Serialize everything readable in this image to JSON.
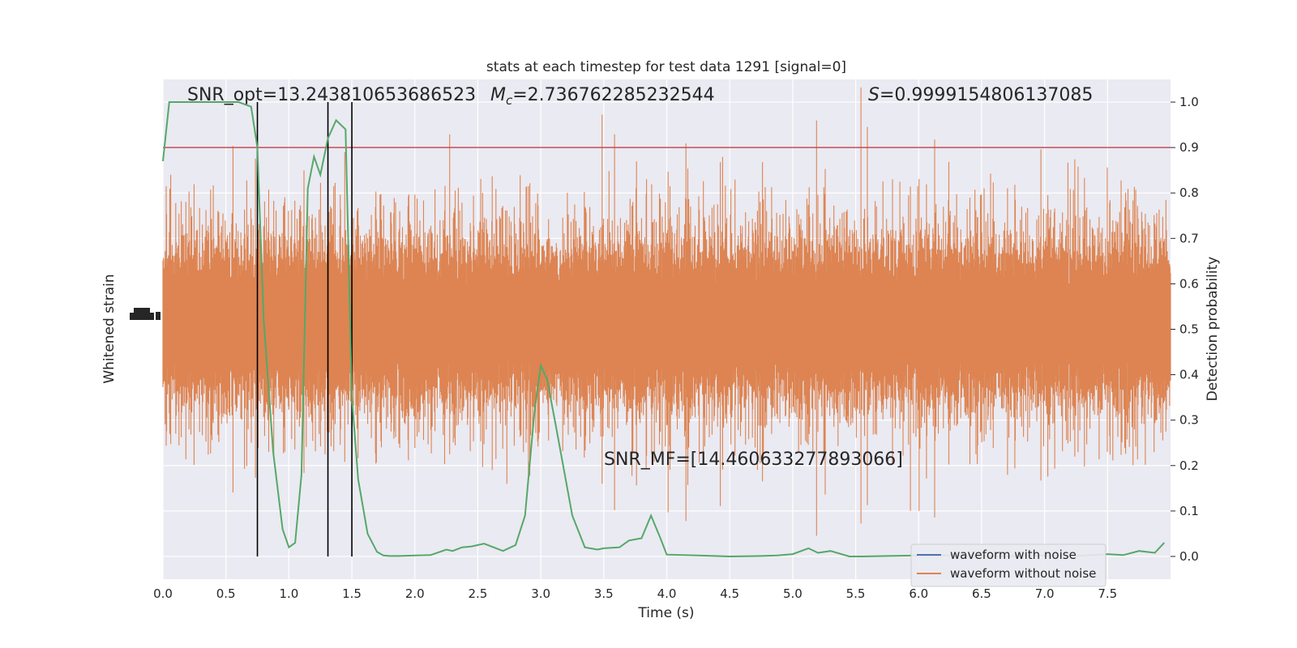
{
  "chart_data": {
    "type": "line",
    "title": "stats at each timestep for test data 1291 [signal=0]",
    "xlabel": "Time (s)",
    "ylabel_left": "Whitened strain",
    "ylabel_right": "Detection probability",
    "xlim": [
      0,
      8
    ],
    "ylim_right": [
      -0.05,
      1.05
    ],
    "x_ticks": [
      "0.0",
      "0.5",
      "1.0",
      "1.5",
      "2.0",
      "2.5",
      "3.0",
      "3.5",
      "4.0",
      "4.5",
      "5.0",
      "5.5",
      "6.0",
      "6.5",
      "7.0",
      "7.5"
    ],
    "y_ticks_right": [
      "0.0",
      "0.1",
      "0.2",
      "0.3",
      "0.4",
      "0.5",
      "0.6",
      "0.7",
      "0.8",
      "0.9",
      "1.0"
    ],
    "grid": true,
    "background": "#eaeaf2",
    "colors": {
      "noisy": "#4c72b0",
      "clean": "#dd8452",
      "probability": "#55a868",
      "threshold": "#c44e52",
      "markers": "#000000"
    },
    "annotations": {
      "snr_opt": "SNR_opt=13.243810653686523",
      "mc_symbol": "M",
      "mc_sub": "c",
      "mc_value": "=2.736762285232544",
      "s_symbol": "S",
      "s_value": "=0.9999154806137085",
      "snr_mf": "SNR_MF=[14.460633277893066]"
    },
    "threshold": 0.9,
    "vertical_markers": [
      0.75,
      1.31,
      1.5
    ],
    "legend": {
      "position": "lower-right",
      "entries": [
        "waveform with noise",
        "waveform without noise"
      ]
    },
    "series": [
      {
        "name": "Detection probability",
        "x": [
          0.0,
          0.05,
          0.125,
          0.25,
          0.375,
          0.5,
          0.6,
          0.7,
          0.75,
          0.8,
          0.875,
          0.95,
          1.0,
          1.05,
          1.1,
          1.15,
          1.2,
          1.25,
          1.31,
          1.375,
          1.45,
          1.5,
          1.55,
          1.625,
          1.7,
          1.75,
          1.8,
          1.875,
          2.0,
          2.125,
          2.25,
          2.3,
          2.375,
          2.45,
          2.55,
          2.625,
          2.7,
          2.8,
          2.875,
          2.95,
          3.0,
          3.05,
          3.125,
          3.25,
          3.35,
          3.45,
          3.5,
          3.625,
          3.7,
          3.8,
          3.875,
          3.95,
          4.0,
          4.25,
          4.5,
          4.75,
          4.875,
          5.0,
          5.125,
          5.2,
          5.3,
          5.45,
          5.55,
          5.75,
          6.0,
          6.25,
          6.5,
          6.75,
          7.0,
          7.25,
          7.5,
          7.625,
          7.75,
          7.875,
          7.95
        ],
        "values": [
          0.87,
          1.0,
          1.0,
          1.0,
          1.0,
          1.0,
          1.0,
          0.99,
          0.9,
          0.52,
          0.23,
          0.06,
          0.02,
          0.03,
          0.18,
          0.81,
          0.88,
          0.84,
          0.92,
          0.96,
          0.94,
          0.35,
          0.17,
          0.05,
          0.01,
          0.002,
          0.001,
          0.001,
          0.002,
          0.003,
          0.015,
          0.012,
          0.02,
          0.022,
          0.028,
          0.02,
          0.012,
          0.025,
          0.09,
          0.32,
          0.42,
          0.39,
          0.28,
          0.09,
          0.02,
          0.015,
          0.018,
          0.02,
          0.035,
          0.04,
          0.09,
          0.04,
          0.004,
          0.002,
          0.0,
          0.001,
          0.002,
          0.005,
          0.018,
          0.008,
          0.012,
          0.0,
          0.0,
          0.001,
          0.002,
          0.002,
          0.0,
          0.001,
          0.002,
          0.001,
          0.005,
          0.003,
          0.012,
          0.008,
          0.03
        ]
      }
    ]
  }
}
